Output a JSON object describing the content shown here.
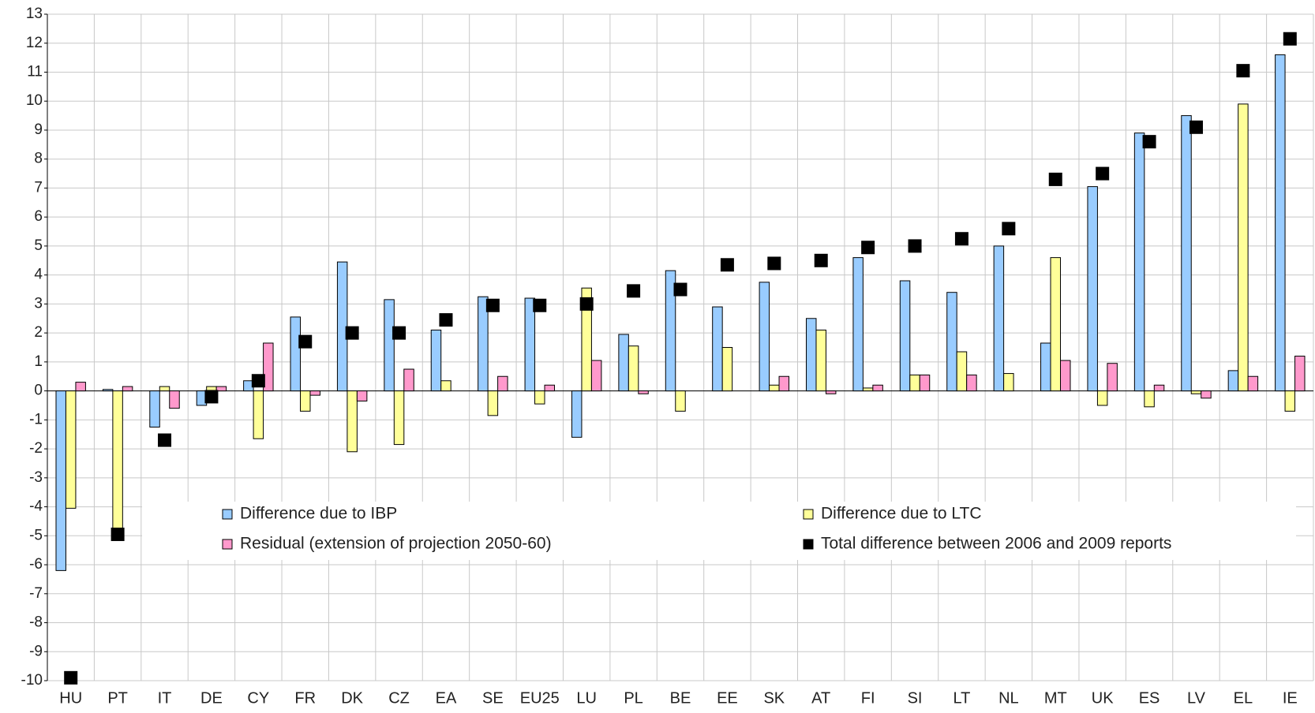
{
  "chart_data": {
    "type": "bar",
    "categories": [
      "HU",
      "PT",
      "IT",
      "DE",
      "CY",
      "FR",
      "DK",
      "CZ",
      "EA",
      "SE",
      "EU25",
      "LU",
      "PL",
      "BE",
      "EE",
      "SK",
      "AT",
      "FI",
      "SI",
      "LT",
      "NL",
      "MT",
      "UK",
      "ES",
      "LV",
      "EL",
      "IE"
    ],
    "series": [
      {
        "name": "Difference due to IBP",
        "color": "#99ccff",
        "values": [
          -6.2,
          0.05,
          -1.25,
          -0.5,
          0.35,
          2.55,
          4.45,
          3.15,
          2.1,
          3.25,
          3.2,
          -1.6,
          1.95,
          4.15,
          2.9,
          3.75,
          2.5,
          4.6,
          3.8,
          3.4,
          5.0,
          1.65,
          7.05,
          8.9,
          9.5,
          0.7,
          11.6
        ]
      },
      {
        "name": "Difference due to LTC",
        "color": "#ffff99",
        "values": [
          -4.05,
          -4.8,
          0.15,
          0.15,
          -1.65,
          -0.7,
          -2.1,
          -1.85,
          0.35,
          -0.85,
          -0.45,
          3.55,
          1.55,
          -0.7,
          1.5,
          0.2,
          2.1,
          0.1,
          0.55,
          1.35,
          0.6,
          4.6,
          -0.5,
          -0.55,
          -0.1,
          9.9,
          -0.7
        ]
      },
      {
        "name": "Residual (extension of projection 2050-60)",
        "color": "#ff99cc",
        "values": [
          0.3,
          0.15,
          -0.6,
          0.15,
          1.65,
          -0.15,
          -0.35,
          0.75,
          0,
          0.5,
          0.2,
          1.05,
          -0.1,
          0,
          0,
          0.5,
          -0.1,
          0.2,
          0.55,
          0.55,
          0,
          1.05,
          0.95,
          0.2,
          -0.25,
          0.5,
          1.2
        ]
      },
      {
        "name": "Total difference between 2006 and 2009 reports",
        "color": "#000000",
        "marker": "square",
        "values": [
          -9.9,
          -4.95,
          -1.7,
          -0.2,
          0.35,
          1.7,
          2.0,
          2.0,
          2.45,
          2.95,
          2.95,
          3.0,
          3.45,
          3.5,
          4.35,
          4.4,
          4.5,
          4.95,
          5.0,
          5.25,
          5.6,
          7.3,
          7.5,
          8.6,
          9.1,
          11.05,
          12.15
        ]
      }
    ],
    "ylim": [
      -10,
      13
    ],
    "yticks": [
      -10,
      -9,
      -8,
      -7,
      -6,
      -5,
      -4,
      -3,
      -2,
      -1,
      0,
      1,
      2,
      3,
      4,
      5,
      6,
      7,
      8,
      9,
      10,
      11,
      12,
      13
    ],
    "grid": true,
    "legend": "center"
  }
}
